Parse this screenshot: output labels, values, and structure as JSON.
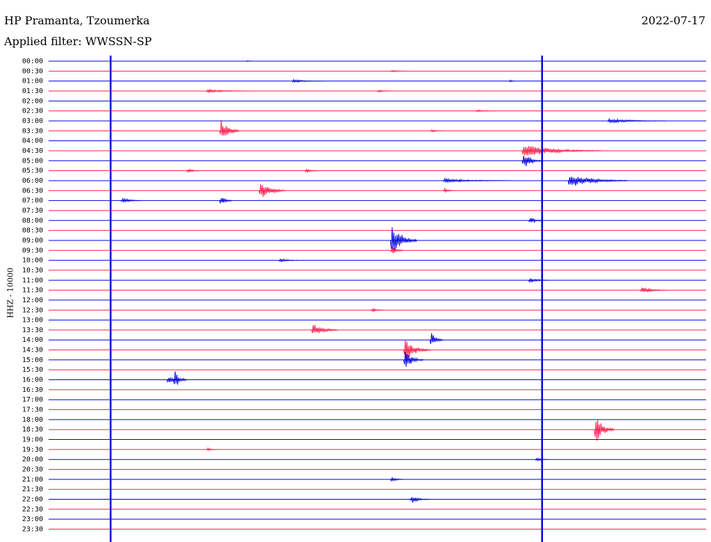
{
  "header": {
    "station": "HP Pramanta, Tzoumerka",
    "filter": "Applied filter: WWSSN-SP",
    "date": "2022-07-17",
    "channel": "HHZ - 10000"
  },
  "colors": {
    "even_trace": "#0000e0",
    "odd_trace": "#ff1a4a"
  },
  "chart_data": {
    "type": "line",
    "title": "HP Pramanta, Tzoumerka",
    "ylabel": "HHZ - 10000",
    "row_labels": [
      "00:00",
      "00:30",
      "01:00",
      "01:30",
      "02:00",
      "02:30",
      "03:00",
      "03:30",
      "04:00",
      "04:30",
      "05:00",
      "05:30",
      "06:00",
      "06:30",
      "07:00",
      "07:30",
      "08:00",
      "08:30",
      "09:00",
      "09:30",
      "10:00",
      "10:30",
      "11:00",
      "11:30",
      "12:00",
      "12:30",
      "13:00",
      "13:30",
      "14:00",
      "14:30",
      "15:00",
      "15:30",
      "16:00",
      "16:30",
      "17:00",
      "17:30",
      "18:00",
      "18:30",
      "19:00",
      "19:30",
      "20:00",
      "20:30",
      "21:00",
      "21:30",
      "22:00",
      "22:30",
      "23:00",
      "23:30"
    ],
    "minutes_per_row": 30,
    "vertical_markers": [
      0.0943,
      0.7505
    ],
    "events": [
      {
        "row": 0,
        "t": 0.3,
        "amp": 0.3,
        "dur": 0.01
      },
      {
        "row": 1,
        "t": 0.52,
        "amp": 0.3,
        "dur": 0.03
      },
      {
        "row": 2,
        "t": 0.37,
        "amp": 0.4,
        "dur": 0.05
      },
      {
        "row": 2,
        "t": 0.7,
        "amp": 0.5,
        "dur": 0.01
      },
      {
        "row": 3,
        "t": 0.24,
        "amp": 0.4,
        "dur": 0.07
      },
      {
        "row": 3,
        "t": 0.5,
        "amp": 0.4,
        "dur": 0.02
      },
      {
        "row": 5,
        "t": 0.65,
        "amp": 0.3,
        "dur": 0.03
      },
      {
        "row": 6,
        "t": 0.85,
        "amp": 0.5,
        "dur": 0.09
      },
      {
        "row": 7,
        "t": 0.26,
        "amp": 3.0,
        "dur": 0.03
      },
      {
        "row": 7,
        "t": 0.58,
        "amp": 0.4,
        "dur": 0.02
      },
      {
        "row": 9,
        "t": 0.72,
        "amp": 1.4,
        "dur": 0.12
      },
      {
        "row": 10,
        "t": 0.72,
        "amp": 2.2,
        "dur": 0.03
      },
      {
        "row": 11,
        "t": 0.21,
        "amp": 0.6,
        "dur": 0.02
      },
      {
        "row": 11,
        "t": 0.39,
        "amp": 0.6,
        "dur": 0.02
      },
      {
        "row": 12,
        "t": 0.6,
        "amp": 0.5,
        "dur": 0.1
      },
      {
        "row": 12,
        "t": 0.79,
        "amp": 1.6,
        "dur": 0.09
      },
      {
        "row": 13,
        "t": 0.32,
        "amp": 2.2,
        "dur": 0.04
      },
      {
        "row": 13,
        "t": 0.6,
        "amp": 0.6,
        "dur": 0.02
      },
      {
        "row": 14,
        "t": 0.11,
        "amp": 0.8,
        "dur": 0.03
      },
      {
        "row": 14,
        "t": 0.26,
        "amp": 1.3,
        "dur": 0.02
      },
      {
        "row": 16,
        "t": 0.73,
        "amp": 1.3,
        "dur": 0.02
      },
      {
        "row": 18,
        "t": 0.52,
        "amp": 4.0,
        "dur": 0.04
      },
      {
        "row": 19,
        "t": 0.52,
        "amp": 1.2,
        "dur": 0.02
      },
      {
        "row": 20,
        "t": 0.35,
        "amp": 0.5,
        "dur": 0.03
      },
      {
        "row": 22,
        "t": 0.73,
        "amp": 0.7,
        "dur": 0.03
      },
      {
        "row": 23,
        "t": 0.9,
        "amp": 0.8,
        "dur": 0.04
      },
      {
        "row": 25,
        "t": 0.49,
        "amp": 0.6,
        "dur": 0.02
      },
      {
        "row": 27,
        "t": 0.4,
        "amp": 1.6,
        "dur": 0.04
      },
      {
        "row": 28,
        "t": 0.58,
        "amp": 2.0,
        "dur": 0.02
      },
      {
        "row": 29,
        "t": 0.54,
        "amp": 3.0,
        "dur": 0.04
      },
      {
        "row": 30,
        "t": 0.54,
        "amp": 2.5,
        "dur": 0.03
      },
      {
        "row": 32,
        "t": 0.18,
        "amp": 1.2,
        "dur": 0.02
      },
      {
        "row": 32,
        "t": 0.19,
        "amp": 2.5,
        "dur": 0.02
      },
      {
        "row": 37,
        "t": 0.83,
        "amp": 3.5,
        "dur": 0.03
      },
      {
        "row": 39,
        "t": 0.24,
        "amp": 0.4,
        "dur": 0.02
      },
      {
        "row": 40,
        "t": 0.74,
        "amp": 0.6,
        "dur": 0.02
      },
      {
        "row": 42,
        "t": 0.52,
        "amp": 0.7,
        "dur": 0.02
      },
      {
        "row": 44,
        "t": 0.55,
        "amp": 1.0,
        "dur": 0.03
      }
    ]
  }
}
